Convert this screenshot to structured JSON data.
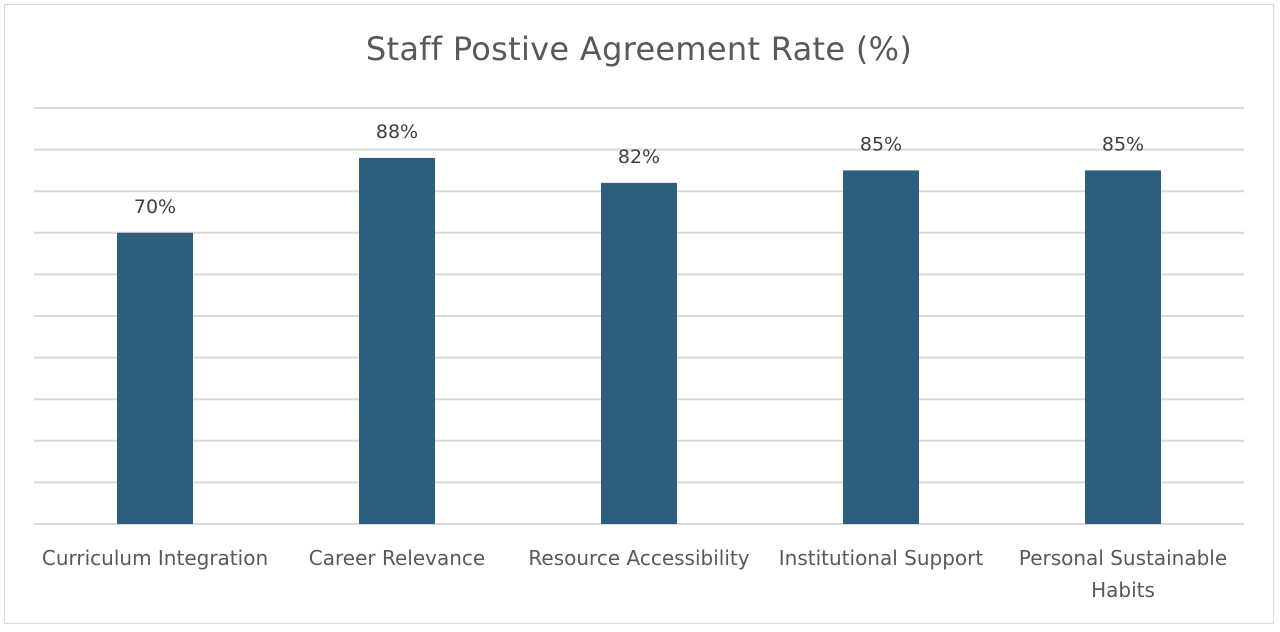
{
  "chart_data": {
    "type": "bar",
    "title": "Staff Postive Agreement Rate (%)",
    "categories": [
      [
        "Curriculum Integration"
      ],
      [
        "Career Relevance"
      ],
      [
        "Resource Accessibility"
      ],
      [
        "Institutional Support"
      ],
      [
        "Personal Sustainable",
        "Habits"
      ]
    ],
    "values": [
      70,
      88,
      82,
      85,
      85
    ],
    "data_labels": [
      "70%",
      "88%",
      "82%",
      "85%",
      "85%"
    ],
    "ylim": [
      0,
      100
    ],
    "gridlines": 10,
    "grid": true,
    "legend": false,
    "bar_color": "#2e5e7e"
  }
}
